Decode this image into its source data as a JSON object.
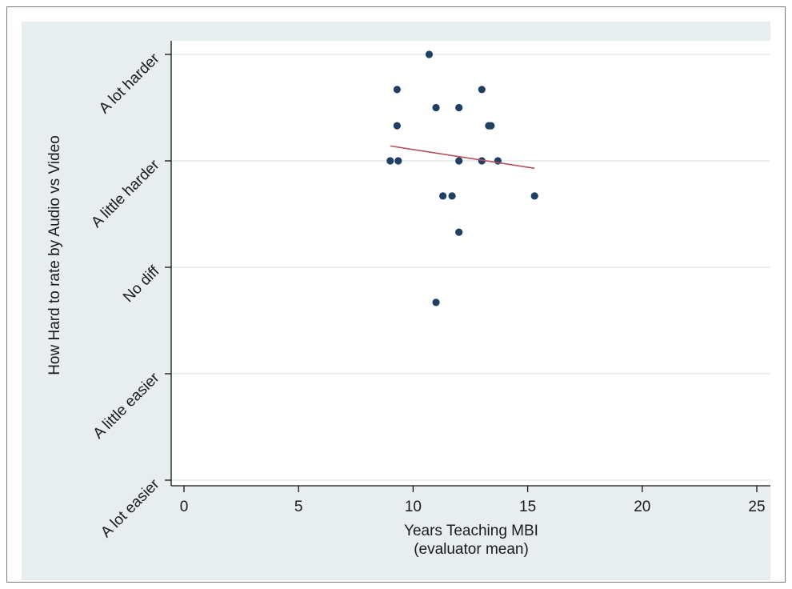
{
  "colors": {
    "outer_background": "#e8edf0",
    "plot_background": "#ffffff",
    "gridline": "#e4eaee",
    "axis": "#111111",
    "marker": "#1f3f63",
    "fit_line": "#b5505a"
  },
  "chart_data": {
    "type": "scatter",
    "xlabel": "Years Teaching MBI",
    "xlabel_line2": "(evaluator mean)",
    "ylabel": "How Hard to rate by Audio vs Video",
    "xlim": [
      0,
      25
    ],
    "ylim": [
      1,
      5
    ],
    "x_ticks": [
      0,
      5,
      10,
      15,
      20,
      25
    ],
    "y_ticks": [
      {
        "value": 1,
        "label": "A lot easier"
      },
      {
        "value": 2,
        "label": "A little easier"
      },
      {
        "value": 3,
        "label": "No diff"
      },
      {
        "value": 4,
        "label": "A little harder"
      },
      {
        "value": 5,
        "label": "A lot harder"
      }
    ],
    "grid": true,
    "points": [
      {
        "x": 10.7,
        "y": 5.0
      },
      {
        "x": 9.3,
        "y": 4.67
      },
      {
        "x": 13.0,
        "y": 4.67
      },
      {
        "x": 11.0,
        "y": 4.5
      },
      {
        "x": 12.0,
        "y": 4.5
      },
      {
        "x": 9.3,
        "y": 4.33
      },
      {
        "x": 13.3,
        "y": 4.33
      },
      {
        "x": 13.4,
        "y": 4.33
      },
      {
        "x": 9.0,
        "y": 4.0
      },
      {
        "x": 9.35,
        "y": 4.0
      },
      {
        "x": 12.0,
        "y": 4.0
      },
      {
        "x": 13.0,
        "y": 4.0
      },
      {
        "x": 13.7,
        "y": 4.0
      },
      {
        "x": 11.3,
        "y": 3.67
      },
      {
        "x": 11.7,
        "y": 3.67
      },
      {
        "x": 15.3,
        "y": 3.67
      },
      {
        "x": 12.0,
        "y": 3.33
      },
      {
        "x": 11.0,
        "y": 2.67
      }
    ],
    "fit_line": {
      "x": [
        9.0,
        15.3
      ],
      "y": [
        4.14,
        3.93
      ]
    }
  }
}
